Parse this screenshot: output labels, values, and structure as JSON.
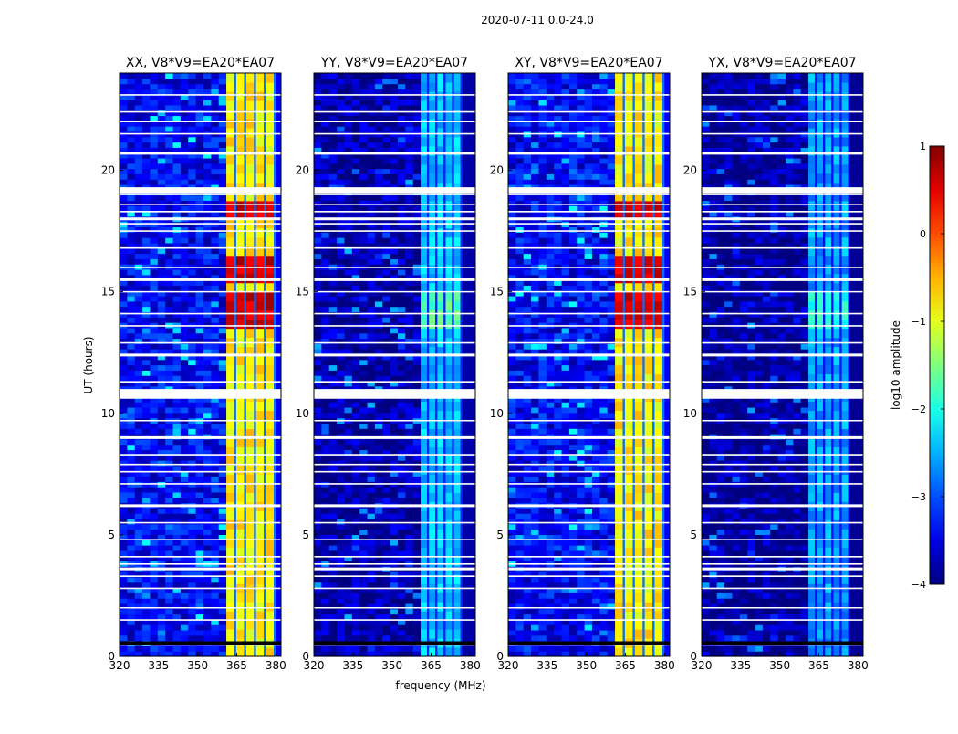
{
  "figure": {
    "suptitle": "2020-07-11 0.0-24.0",
    "ylabel": "UT (hours)",
    "xlabel": "frequency (MHz)"
  },
  "chart_data": {
    "type": "heatmap",
    "x_range_mhz": [
      320,
      382
    ],
    "y_range_hours": [
      0,
      24
    ],
    "x_ticks": [
      320,
      335,
      350,
      365,
      380
    ],
    "y_ticks": [
      0,
      5,
      10,
      15,
      20
    ],
    "color_scale": {
      "label": "log10 amplitude",
      "range": [
        -4,
        1
      ],
      "ticks": [
        1,
        0,
        -1,
        -2,
        -3,
        -4
      ],
      "colormap": "jet"
    },
    "flagged_rows_hours": [
      0.5,
      1.5,
      2.0,
      2.8,
      3.3,
      3.6,
      3.8,
      4.1,
      4.8,
      5.5,
      6.2,
      7.1,
      7.6,
      7.9,
      8.3,
      9.0,
      9.7,
      10.7,
      10.9,
      11.3,
      12.4,
      12.9,
      13.6,
      14.1,
      15.0,
      15.5,
      16.0,
      16.8,
      17.5,
      17.8,
      18.0,
      18.3,
      18.6,
      19.0,
      19.2,
      20.7,
      21.5,
      22.0,
      22.4,
      23.1
    ],
    "panels": [
      {
        "title": "XX, V8*V9=EA20*EA07",
        "band_mhz": [
          361,
          380
        ],
        "band_level": -0.8,
        "background_level": -3.4,
        "hot_hours": [
          [
            13.5,
            14.9
          ],
          [
            15.7,
            16.3
          ],
          [
            18.2,
            18.6
          ]
        ],
        "hot_level": 0.6
      },
      {
        "title": "YY, V8*V9=EA20*EA07",
        "band_mhz": [
          361,
          377
        ],
        "band_level": -2.4,
        "background_level": -3.8,
        "hot_hours": [
          [
            13.5,
            14.9
          ]
        ],
        "hot_level": -1.7
      },
      {
        "title": "XY, V8*V9=EA20*EA07",
        "band_mhz": [
          361,
          380
        ],
        "band_level": -0.8,
        "background_level": -3.4,
        "hot_hours": [
          [
            13.5,
            14.9
          ],
          [
            15.7,
            16.3
          ],
          [
            18.2,
            18.6
          ]
        ],
        "hot_level": 0.6
      },
      {
        "title": "YX, V8*V9=EA20*EA07",
        "band_mhz": [
          361,
          377
        ],
        "band_level": -2.6,
        "background_level": -3.9,
        "hot_hours": [
          [
            13.5,
            14.9
          ]
        ],
        "hot_level": -2.0
      }
    ]
  }
}
